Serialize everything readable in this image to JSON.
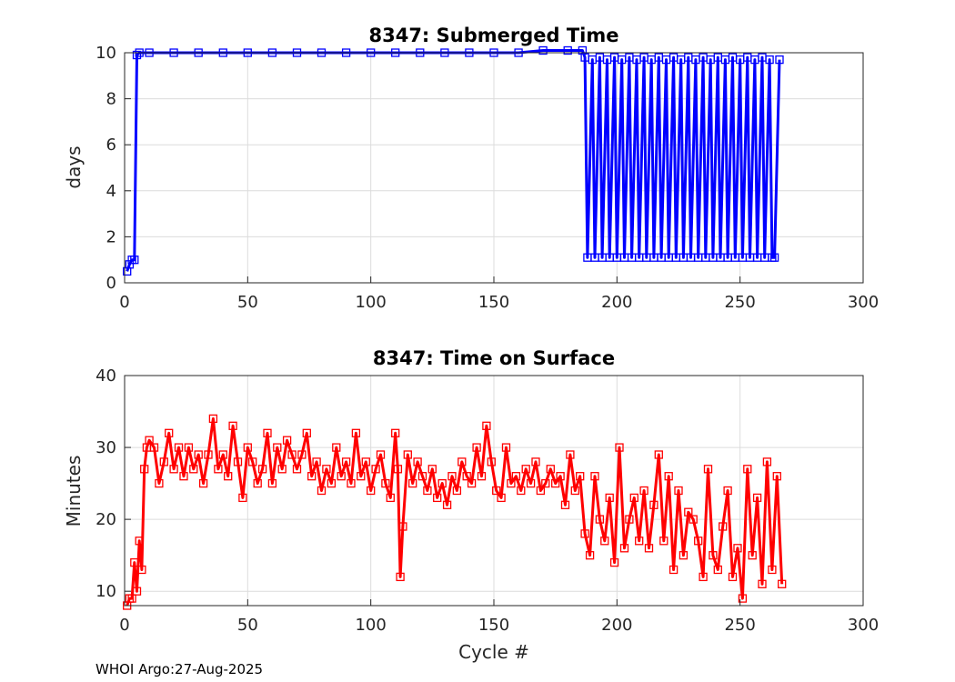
{
  "footer": "WHOI Argo:27-Aug-2025",
  "chart_data": [
    {
      "type": "line",
      "title": "8347: Submerged Time",
      "xlabel": "",
      "ylabel": "days",
      "xlim": [
        0,
        300
      ],
      "ylim": [
        0,
        10
      ],
      "xticks": [
        0,
        50,
        100,
        150,
        200,
        250,
        300
      ],
      "yticks": [
        0,
        2,
        4,
        6,
        8,
        10
      ],
      "grid": true,
      "marker": "square",
      "color": "#0000ff",
      "series": [
        {
          "name": "Submerged Time",
          "x": [
            1,
            2,
            3,
            4,
            5,
            6,
            10,
            20,
            30,
            40,
            50,
            60,
            70,
            80,
            90,
            100,
            110,
            120,
            130,
            140,
            150,
            160,
            170,
            180,
            186,
            187,
            188,
            190,
            191,
            193,
            194,
            196,
            197,
            199,
            200,
            202,
            203,
            205,
            206,
            208,
            209,
            211,
            212,
            214,
            215,
            217,
            218,
            220,
            221,
            223,
            224,
            226,
            227,
            229,
            230,
            232,
            233,
            235,
            236,
            238,
            239,
            241,
            242,
            244,
            245,
            247,
            248,
            250,
            251,
            253,
            254,
            256,
            257,
            259,
            260,
            262,
            263,
            264,
            266
          ],
          "values": [
            0.5,
            0.8,
            1.0,
            1.0,
            9.9,
            10.0,
            10.0,
            10.0,
            10.0,
            10.0,
            10.0,
            10.0,
            10.0,
            10.0,
            10.0,
            10.0,
            10.0,
            10.0,
            10.0,
            10.0,
            10.0,
            10.0,
            10.1,
            10.1,
            10.1,
            9.8,
            1.1,
            9.7,
            1.1,
            9.8,
            1.1,
            9.7,
            1.1,
            9.8,
            1.1,
            9.7,
            1.1,
            9.8,
            1.1,
            9.7,
            1.1,
            9.8,
            1.1,
            9.7,
            1.1,
            9.8,
            1.1,
            9.7,
            1.1,
            9.8,
            1.1,
            9.7,
            1.1,
            9.8,
            1.1,
            9.7,
            1.1,
            9.8,
            1.1,
            9.7,
            1.1,
            9.8,
            1.1,
            9.7,
            1.1,
            9.8,
            1.1,
            9.7,
            1.1,
            9.8,
            1.1,
            9.7,
            1.1,
            9.8,
            1.1,
            9.7,
            1.1,
            1.1,
            9.7
          ]
        }
      ]
    },
    {
      "type": "line",
      "title": "8347: Time on Surface",
      "xlabel": "Cycle #",
      "ylabel": "Minutes",
      "xlim": [
        0,
        300
      ],
      "ylim": [
        8,
        40
      ],
      "xticks": [
        0,
        50,
        100,
        150,
        200,
        250,
        300
      ],
      "yticks": [
        10,
        20,
        30,
        40
      ],
      "grid": true,
      "marker": "square",
      "color": "#ff0000",
      "series": [
        {
          "name": "Time on Surface",
          "x": [
            1,
            2,
            3,
            4,
            5,
            6,
            7,
            8,
            9,
            10,
            12,
            14,
            16,
            18,
            20,
            22,
            24,
            26,
            28,
            30,
            32,
            34,
            36,
            38,
            40,
            42,
            44,
            46,
            48,
            50,
            52,
            54,
            56,
            58,
            60,
            62,
            64,
            66,
            68,
            70,
            72,
            74,
            76,
            78,
            80,
            82,
            84,
            86,
            88,
            90,
            92,
            94,
            96,
            98,
            100,
            102,
            104,
            106,
            108,
            110,
            111,
            112,
            113,
            115,
            117,
            119,
            121,
            123,
            125,
            127,
            129,
            131,
            133,
            135,
            137,
            139,
            141,
            143,
            145,
            147,
            149,
            151,
            153,
            155,
            157,
            159,
            161,
            163,
            165,
            167,
            169,
            171,
            173,
            175,
            177,
            179,
            181,
            183,
            185,
            187,
            189,
            191,
            193,
            195,
            197,
            199,
            201,
            203,
            205,
            207,
            209,
            211,
            213,
            215,
            217,
            219,
            221,
            223,
            225,
            227,
            229,
            231,
            233,
            235,
            237,
            239,
            241,
            243,
            245,
            247,
            249,
            251,
            253,
            255,
            257,
            259,
            261,
            263,
            265,
            267
          ],
          "values": [
            8,
            9,
            9,
            14,
            10,
            17,
            13,
            27,
            30,
            31,
            30,
            25,
            28,
            32,
            27,
            30,
            26,
            30,
            27,
            29,
            25,
            29,
            34,
            27,
            29,
            26,
            33,
            28,
            23,
            30,
            28,
            25,
            27,
            32,
            25,
            30,
            27,
            31,
            29,
            27,
            29,
            32,
            26,
            28,
            24,
            27,
            25,
            30,
            26,
            28,
            25,
            32,
            26,
            28,
            24,
            27,
            29,
            25,
            23,
            32,
            27,
            12,
            19,
            29,
            25,
            28,
            26,
            24,
            27,
            23,
            25,
            22,
            26,
            24,
            28,
            26,
            25,
            30,
            26,
            33,
            28,
            24,
            23,
            30,
            25,
            26,
            24,
            27,
            25,
            28,
            24,
            25,
            27,
            25,
            26,
            22,
            29,
            24,
            26,
            18,
            15,
            26,
            20,
            17,
            23,
            14,
            30,
            16,
            20,
            23,
            17,
            24,
            16,
            22,
            29,
            17,
            26,
            13,
            24,
            15,
            21,
            20,
            17,
            12,
            27,
            15,
            13,
            19,
            24,
            12,
            16,
            9,
            27,
            15,
            23,
            11,
            28,
            13,
            26,
            11
          ]
        }
      ]
    }
  ]
}
